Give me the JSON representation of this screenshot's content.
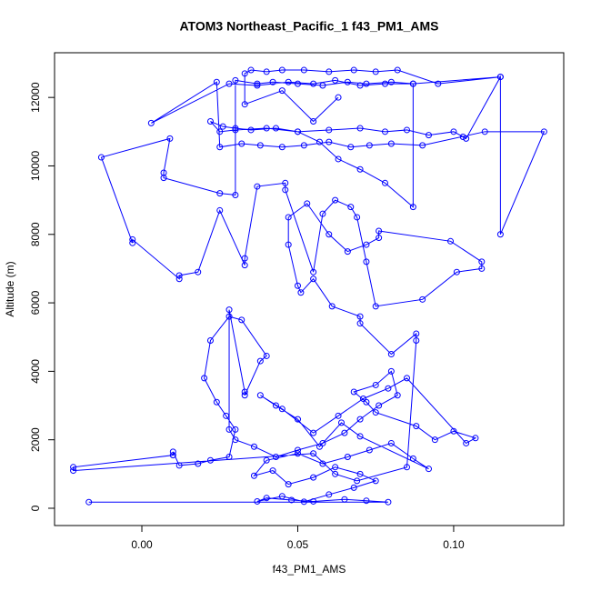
{
  "chart_data": {
    "type": "line",
    "markers": true,
    "color": "#0000ff",
    "title": "ATOM3 Northeast_Pacific_1 f43_PM1_AMS",
    "x_label": "f43_PM1_AMS",
    "y_label": "Altitude (m)",
    "xlim": [
      -0.028,
      0.1353
    ],
    "ylim": [
      -505,
      13306
    ],
    "xticks": [
      {
        "value": 0,
        "label": "0.00"
      },
      0.05,
      {
        "value": 0.1,
        "label": "0.10"
      }
    ],
    "yticks": [
      0,
      2000,
      4000,
      6000,
      8000,
      10000,
      12000
    ],
    "x": [
      -0.017,
      0.079,
      0.072,
      0.065,
      0.055,
      0.048,
      0.04,
      0.037,
      0.045,
      0.052,
      0.06,
      0.068,
      0.075,
      0.07,
      0.062,
      0.055,
      0.047,
      0.042,
      0.036,
      0.04,
      0.05,
      0.058,
      0.066,
      0.073,
      0.08,
      0.087,
      0.092,
      0.07,
      0.064,
      0.057,
      0.05,
      0.043,
      0.038,
      0.045,
      0.055,
      0.063,
      0.071,
      0.079,
      0.085,
      0.104,
      0.107,
      0.1,
      0.094,
      0.088,
      0.075,
      0.072,
      0.068,
      0.075,
      0.08,
      0.082,
      0.076,
      0.07,
      0.065,
      0.058,
      0.05,
      0.043,
      0.036,
      0.03,
      0.028,
      0.028,
      0.033,
      0.033,
      0.038,
      0.04,
      0.032,
      0.028,
      0.022,
      0.02,
      0.024,
      0.027,
      0.03,
      0.028,
      0.022,
      0.018,
      0.012,
      0.01,
      0.01,
      -0.022,
      -0.022,
      0.055,
      0.062,
      0.069,
      0.085,
      0.088,
      0.088,
      0.08,
      0.07,
      0.07,
      0.061,
      0.055,
      0.051,
      0.05,
      0.047,
      0.047,
      0.053,
      0.06,
      0.066,
      0.072,
      0.076,
      0.076,
      0.099,
      0.109,
      0.109,
      0.101,
      0.09,
      0.075,
      0.072,
      0.069,
      0.067,
      0.062,
      0.058,
      0.055,
      0.046,
      0.046,
      0.037,
      0.033,
      0.033,
      0.025,
      0.018,
      0.012,
      0.012,
      -0.003,
      -0.003,
      -0.013,
      0.009,
      0.007,
      0.007,
      0.025,
      0.03,
      0.03,
      0.037,
      0.042,
      0.05,
      0.058,
      0.066,
      0.072,
      0.08,
      0.087,
      0.087,
      0.078,
      0.07,
      0.063,
      0.057,
      0.05,
      0.043,
      0.035,
      0.03,
      0.026,
      0.022,
      0.025,
      0.03,
      0.04,
      0.05,
      0.06,
      0.07,
      0.078,
      0.085,
      0.092,
      0.1,
      0.103,
      0.104,
      0.115,
      0.115,
      0.129,
      0.11,
      0.09,
      0.08,
      0.073,
      0.067,
      0.06,
      0.052,
      0.045,
      0.038,
      0.032,
      0.025,
      0.024,
      0.003,
      0.028,
      0.037,
      0.047,
      0.055,
      0.062,
      0.07,
      0.078,
      0.087,
      0.115,
      0.095,
      0.082,
      0.075,
      0.068,
      0.06,
      0.052,
      0.045,
      0.04,
      0.035,
      0.033,
      0.033,
      0.045,
      0.055,
      0.063
    ],
    "values": [
      180,
      180,
      220,
      260,
      200,
      240,
      300,
      200,
      350,
      190,
      400,
      600,
      800,
      1000,
      1200,
      900,
      700,
      1100,
      950,
      1400,
      1600,
      1300,
      1500,
      1700,
      1900,
      1450,
      1150,
      2100,
      2500,
      1800,
      2600,
      3000,
      3300,
      2900,
      2200,
      2700,
      3200,
      3500,
      3800,
      1900,
      2050,
      2250,
      2000,
      2400,
      2800,
      3100,
      3400,
      3600,
      4000,
      3300,
      3000,
      2600,
      2200,
      1900,
      1700,
      1500,
      1800,
      2000,
      2300,
      5800,
      3400,
      3300,
      4300,
      4450,
      5500,
      5600,
      4900,
      3800,
      3100,
      2700,
      2300,
      1500,
      1400,
      1300,
      1250,
      1650,
      1550,
      1200,
      1100,
      1600,
      1000,
      800,
      1200,
      4900,
      5100,
      4500,
      5400,
      5600,
      5900,
      6700,
      6300,
      6500,
      7700,
      8500,
      8900,
      8000,
      7500,
      7700,
      7900,
      8100,
      7800,
      7200,
      7000,
      6900,
      6100,
      5900,
      7200,
      8500,
      8800,
      9000,
      8600,
      6900,
      9300,
      9500,
      9400,
      7300,
      7100,
      8700,
      6900,
      6800,
      6700,
      7850,
      7750,
      10250,
      10800,
      9800,
      9650,
      9200,
      9150,
      12500,
      12400,
      12450,
      12400,
      12350,
      12450,
      12400,
      12450,
      12400,
      8800,
      9500,
      9900,
      10200,
      10700,
      11000,
      11100,
      11050,
      11100,
      11150,
      11300,
      11000,
      11050,
      11100,
      11000,
      11050,
      11100,
      11000,
      11050,
      10900,
      11000,
      10850,
      10800,
      12600,
      8000,
      11000,
      11000,
      10600,
      10650,
      10600,
      10550,
      10700,
      10600,
      10550,
      10600,
      10650,
      10550,
      12450,
      11250,
      12400,
      12350,
      12450,
      12400,
      12500,
      12350,
      12400,
      12400,
      12600,
      12400,
      12800,
      12750,
      12800,
      12750,
      12800,
      12800,
      12750,
      12800,
      12700,
      11800,
      12200,
      11300,
      12000
    ]
  }
}
